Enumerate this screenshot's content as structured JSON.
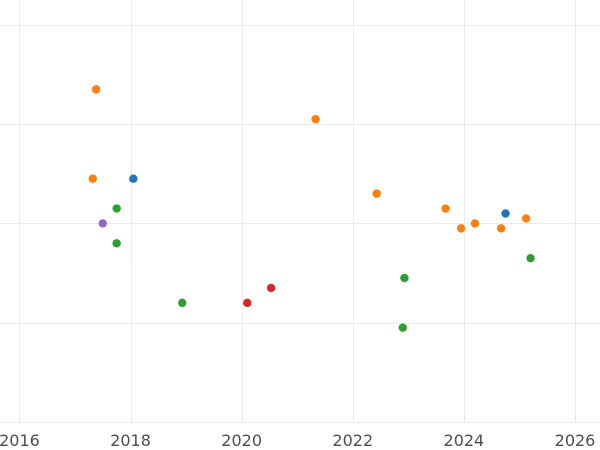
{
  "chart_data": {
    "type": "scatter",
    "title": "",
    "xlabel": "",
    "ylabel": "",
    "xlim": [
      2015.65,
      2026.45
    ],
    "ylim": [
      0,
      8.5
    ],
    "grid": true,
    "legend": "none",
    "x_ticks": [
      2016,
      2018,
      2020,
      2022,
      2024,
      2026
    ],
    "x_tick_labels": [
      "2016",
      "2018",
      "2020",
      "2022",
      "2024",
      "2026"
    ],
    "y_ticks": [
      0,
      2,
      4,
      6,
      8
    ],
    "series": [
      {
        "color": "#1f77b4",
        "points": [
          {
            "x": 2018.05,
            "y": 4.9
          },
          {
            "x": 2024.75,
            "y": 4.2
          }
        ]
      },
      {
        "color": "#ff7f0e",
        "points": [
          {
            "x": 2017.38,
            "y": 6.7
          },
          {
            "x": 2017.32,
            "y": 4.9
          },
          {
            "x": 2021.33,
            "y": 6.1
          },
          {
            "x": 2022.43,
            "y": 4.6
          },
          {
            "x": 2023.67,
            "y": 4.3
          },
          {
            "x": 2023.95,
            "y": 3.9
          },
          {
            "x": 2024.2,
            "y": 4.0
          },
          {
            "x": 2024.67,
            "y": 3.9
          },
          {
            "x": 2025.12,
            "y": 4.1
          }
        ]
      },
      {
        "color": "#2ca02c",
        "points": [
          {
            "x": 2017.75,
            "y": 4.3
          },
          {
            "x": 2017.75,
            "y": 3.6
          },
          {
            "x": 2018.93,
            "y": 2.4
          },
          {
            "x": 2022.93,
            "y": 2.9
          },
          {
            "x": 2022.9,
            "y": 1.9
          },
          {
            "x": 2025.2,
            "y": 3.3
          }
        ]
      },
      {
        "color": "#d62728",
        "points": [
          {
            "x": 2020.1,
            "y": 2.4
          },
          {
            "x": 2020.53,
            "y": 2.7
          }
        ]
      },
      {
        "color": "#9467bd",
        "points": [
          {
            "x": 2017.5,
            "y": 4.0
          }
        ]
      }
    ]
  }
}
